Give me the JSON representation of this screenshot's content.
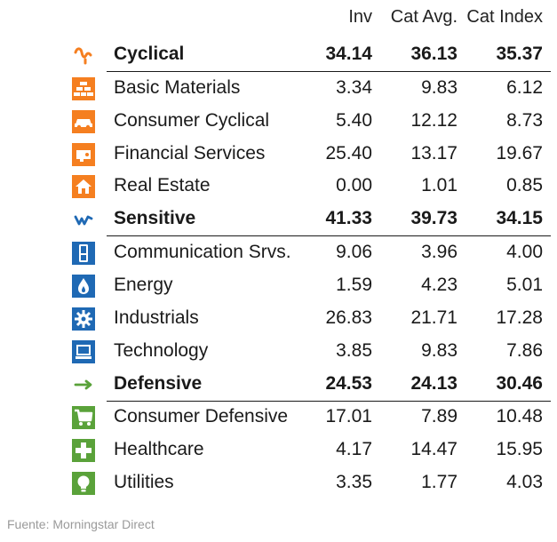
{
  "headers": {
    "inv": "Inv",
    "cat_avg": "Cat Avg.",
    "cat_index": "Cat Index"
  },
  "colors": {
    "cyclical": "#f57f20",
    "sensitive": "#1f69b4",
    "defensive": "#5aa23a",
    "text": "#1a1a1a",
    "source": "#9a9a9a"
  },
  "groups": [
    {
      "name": "Cyclical",
      "icon": "cyclical-icon",
      "inv": "34.14",
      "cat_avg": "36.13",
      "cat_index": "35.37",
      "sectors": [
        {
          "name": "Basic Materials",
          "icon": "basic-materials-icon",
          "inv": "3.34",
          "cat_avg": "9.83",
          "cat_index": "6.12"
        },
        {
          "name": "Consumer Cyclical",
          "icon": "consumer-cyclical-icon",
          "inv": "5.40",
          "cat_avg": "12.12",
          "cat_index": "8.73"
        },
        {
          "name": "Financial Services",
          "icon": "financial-services-icon",
          "inv": "25.40",
          "cat_avg": "13.17",
          "cat_index": "19.67"
        },
        {
          "name": "Real Estate",
          "icon": "real-estate-icon",
          "inv": "0.00",
          "cat_avg": "1.01",
          "cat_index": "0.85"
        }
      ]
    },
    {
      "name": "Sensitive",
      "icon": "sensitive-icon",
      "inv": "41.33",
      "cat_avg": "39.73",
      "cat_index": "34.15",
      "sectors": [
        {
          "name": "Communication Srvs.",
          "icon": "communication-icon",
          "inv": "9.06",
          "cat_avg": "3.96",
          "cat_index": "4.00"
        },
        {
          "name": "Energy",
          "icon": "energy-icon",
          "inv": "1.59",
          "cat_avg": "4.23",
          "cat_index": "5.01"
        },
        {
          "name": "Industrials",
          "icon": "industrials-icon",
          "inv": "26.83",
          "cat_avg": "21.71",
          "cat_index": "17.28"
        },
        {
          "name": "Technology",
          "icon": "technology-icon",
          "inv": "3.85",
          "cat_avg": "9.83",
          "cat_index": "7.86"
        }
      ]
    },
    {
      "name": "Defensive",
      "icon": "defensive-icon",
      "inv": "24.53",
      "cat_avg": "24.13",
      "cat_index": "30.46",
      "sectors": [
        {
          "name": "Consumer Defensive",
          "icon": "consumer-defensive-icon",
          "inv": "17.01",
          "cat_avg": "7.89",
          "cat_index": "10.48"
        },
        {
          "name": "Healthcare",
          "icon": "healthcare-icon",
          "inv": "4.17",
          "cat_avg": "14.47",
          "cat_index": "15.95"
        },
        {
          "name": "Utilities",
          "icon": "utilities-icon",
          "inv": "3.35",
          "cat_avg": "1.77",
          "cat_index": "4.03"
        }
      ]
    }
  ],
  "source": "Fuente: Morningstar Direct"
}
